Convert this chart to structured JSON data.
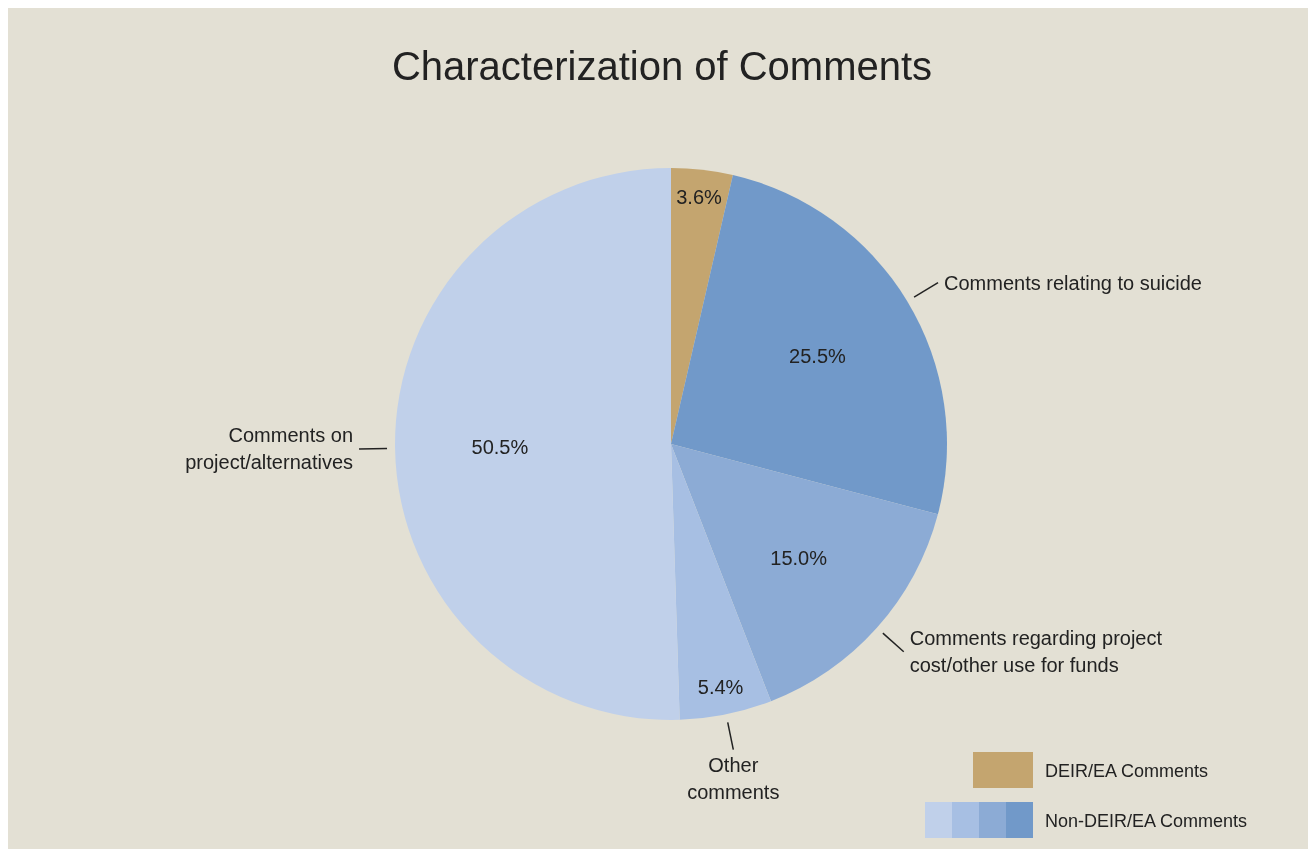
{
  "chart_data": {
    "type": "pie",
    "title": "Characterization of Comments",
    "categories": [
      "DEIR/EA Comments",
      "Comments relating to suicide",
      "Comments regarding project cost/other use for funds",
      "Other comments",
      "Comments on project/alternatives"
    ],
    "values": [
      3.6,
      25.5,
      15.0,
      5.4,
      50.5
    ],
    "value_labels": [
      "3.6%",
      "25.5%",
      "15.0%",
      "5.4%",
      "50.5%"
    ],
    "colors": [
      "#c4a56f",
      "#7199c9",
      "#8cabd5",
      "#a7bfe3",
      "#c0d0ea"
    ],
    "legend": "bottom right",
    "annotations": [
      "Non-DEIR/EA Comments"
    ]
  }
}
